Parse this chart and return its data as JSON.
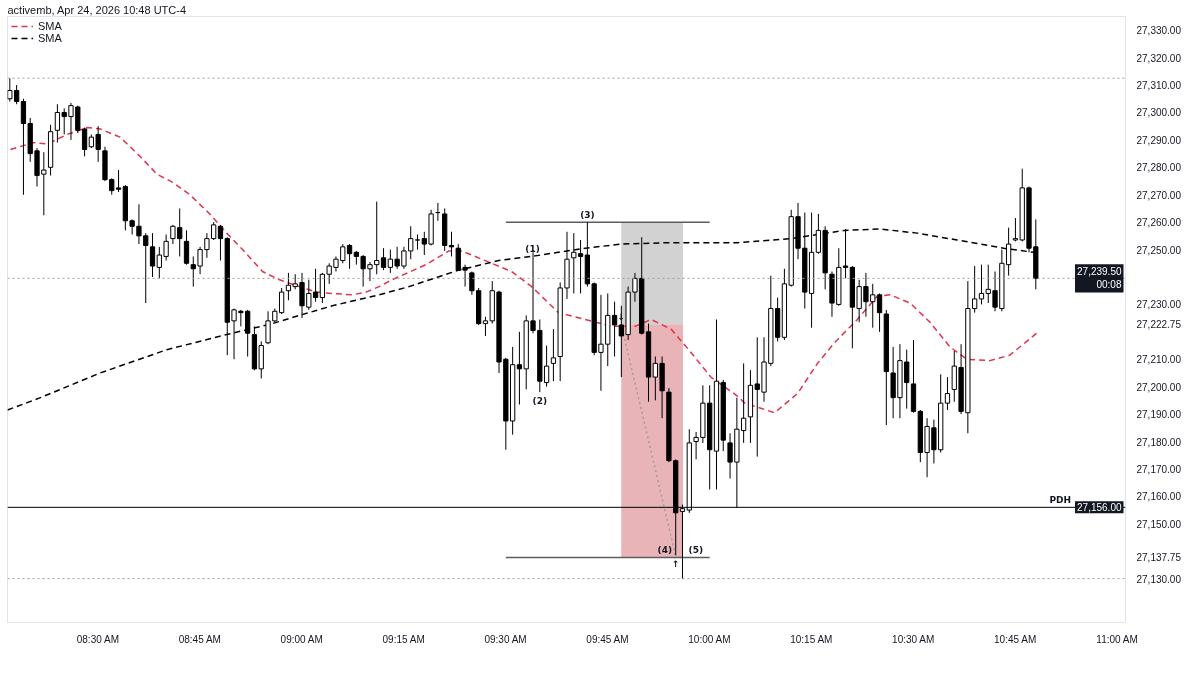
{
  "chart_data": {
    "type": "candlestick",
    "x": [
      8.2833,
      8.3,
      8.3167,
      8.3333,
      8.35,
      8.3667,
      8.3833,
      8.4,
      8.4167,
      8.4333,
      8.45,
      8.4667,
      8.4833,
      8.5,
      8.5167,
      8.5333,
      8.55,
      8.5667,
      8.5833,
      8.6,
      8.6167,
      8.6333,
      8.65,
      8.6667,
      8.6833,
      8.7,
      8.7167,
      8.7333,
      8.75,
      8.7667,
      8.7833,
      8.8,
      8.8167,
      8.8333,
      8.85,
      8.8667,
      8.8833,
      8.9,
      8.9167,
      8.9333,
      8.95,
      8.9667,
      8.9833,
      9.0,
      9.0167,
      9.0333,
      9.05,
      9.0667,
      9.0833,
      9.1,
      9.1167,
      9.1333,
      9.15,
      9.1667,
      9.1833,
      9.2,
      9.2167,
      9.2333,
      9.25,
      9.2667,
      9.2833,
      9.3,
      9.3167,
      9.3333,
      9.35,
      9.3667,
      9.3833,
      9.4,
      9.4167,
      9.4333,
      9.45,
      9.4667,
      9.4833,
      9.5,
      9.5167,
      9.5333,
      9.55,
      9.5667,
      9.5833,
      9.6,
      9.6167,
      9.6333,
      9.65,
      9.6667,
      9.6833,
      9.7,
      9.7167,
      9.7333,
      9.75,
      9.7667,
      9.7833,
      9.8,
      9.8167,
      9.8333,
      9.85,
      9.8667,
      9.8833,
      9.9,
      9.9167,
      9.9333,
      9.95,
      9.9667,
      9.9833,
      10.0,
      10.0167,
      10.0333,
      10.05,
      10.0667,
      10.0833,
      10.1,
      10.1167,
      10.1333,
      10.15,
      10.1667,
      10.1833,
      10.2,
      10.2167,
      10.2333,
      10.25,
      10.2667,
      10.2833,
      10.3,
      10.3167,
      10.3333,
      10.35,
      10.3667,
      10.3833,
      10.4,
      10.4167,
      10.4333,
      10.45,
      10.4667,
      10.4833,
      10.5,
      10.5167,
      10.5333,
      10.55,
      10.5667,
      10.5833,
      10.6,
      10.6167,
      10.6333,
      10.65,
      10.6667,
      10.6833,
      10.7,
      10.7167,
      10.7333,
      10.75,
      10.7667,
      10.7833,
      10.8
    ],
    "ohlc": [
      [
        27305,
        27312.5,
        27304,
        27308
      ],
      [
        27308,
        27310,
        27303,
        27304
      ],
      [
        27304,
        27305,
        27270,
        27296
      ],
      [
        27296,
        27298,
        27282,
        27285
      ],
      [
        27286,
        27287,
        27273,
        27277
      ],
      [
        27277.5,
        27285.5,
        27262.5,
        27279
      ],
      [
        27280,
        27295.5,
        27277,
        27293
      ],
      [
        27293.5,
        27303,
        27289,
        27300
      ],
      [
        27300,
        27301.5,
        27292,
        27298.5
      ],
      [
        27298.5,
        27303.5,
        27290,
        27302.5
      ],
      [
        27302,
        27302.5,
        27292.5,
        27293.5
      ],
      [
        27294,
        27294.5,
        27284,
        27286.5
      ],
      [
        27287.5,
        27292,
        27287,
        27291
      ],
      [
        27292,
        27295,
        27282,
        27286.5
      ],
      [
        27286,
        27287.5,
        27275,
        27275.5
      ],
      [
        27275.5,
        27276,
        27270,
        27271.5
      ],
      [
        27272.5,
        27279,
        27271,
        27272
      ],
      [
        27273,
        27273.5,
        27257,
        27260.5
      ],
      [
        27260.5,
        27261,
        27255.5,
        27258.5
      ],
      [
        27258.5,
        27266.5,
        27252,
        27255
      ],
      [
        27255,
        27256,
        27230.5,
        27251.5
      ],
      [
        27251,
        27256,
        27240,
        27244
      ],
      [
        27243.5,
        27251,
        27239.5,
        27248
      ],
      [
        27247.5,
        27255.5,
        27246,
        27253
      ],
      [
        27254,
        27259,
        27252,
        27258.5
      ],
      [
        27258,
        27265,
        27247.5,
        27254
      ],
      [
        27253,
        27257,
        27244.5,
        27245
      ],
      [
        27244.5,
        27247.5,
        27236.5,
        27243
      ],
      [
        27244,
        27251,
        27241,
        27250
      ],
      [
        27250,
        27256,
        27247,
        27254
      ],
      [
        27254,
        27260,
        27253.5,
        27259
      ],
      [
        27258.5,
        27259,
        27246,
        27254
      ],
      [
        27254,
        27254.5,
        27211.5,
        27223.5
      ],
      [
        27224,
        27228.5,
        27210,
        27228
      ],
      [
        27227.5,
        27228,
        27222,
        27227
      ],
      [
        27227.5,
        27228,
        27211,
        27219.5
      ],
      [
        27219,
        27222,
        27206,
        27206.5
      ],
      [
        27206.5,
        27216.5,
        27203,
        27215
      ],
      [
        27216,
        27227.5,
        27215.5,
        27224
      ],
      [
        27224,
        27228.5,
        27223.5,
        27227.5
      ],
      [
        27227,
        27236,
        27226.5,
        27234.5
      ],
      [
        27235,
        27241.5,
        27231.5,
        27237
      ],
      [
        27236.5,
        27241,
        27235.5,
        27237.5
      ],
      [
        27238,
        27241.5,
        27225,
        27229.5
      ],
      [
        27229,
        27239,
        27228,
        27234
      ],
      [
        27234.5,
        27243,
        27231,
        27232.5
      ],
      [
        27232.5,
        27241.5,
        27230.5,
        27241
      ],
      [
        27241,
        27245,
        27237.5,
        27244
      ],
      [
        27243.5,
        27247.5,
        27242,
        27246.5
      ],
      [
        27246,
        27252,
        27245,
        27251
      ],
      [
        27251.5,
        27252,
        27243,
        27248.5
      ],
      [
        27249,
        27249.5,
        27244.5,
        27247.5
      ],
      [
        27247.5,
        27248,
        27236.5,
        27243
      ],
      [
        27243,
        27245.5,
        27238.5,
        27244.5
      ],
      [
        27244.5,
        27267.5,
        27241,
        27246
      ],
      [
        27247,
        27250.5,
        27242.5,
        27243.5
      ],
      [
        27243.5,
        27250,
        27241.5,
        27246.5
      ],
      [
        27246.5,
        27251,
        27243,
        27244
      ],
      [
        27244,
        27251,
        27243,
        27249.5
      ],
      [
        27249.5,
        27258.5,
        27246.5,
        27254
      ],
      [
        27253.5,
        27255.5,
        27250,
        27253.5
      ],
      [
        27254,
        27256.5,
        27248,
        27252
      ],
      [
        27252,
        27264.5,
        27251.5,
        27263
      ],
      [
        27263.5,
        27267,
        27260.5,
        27263.5
      ],
      [
        27263,
        27265,
        27249.5,
        27251.5
      ],
      [
        27251.5,
        27256.5,
        27247.5,
        27251
      ],
      [
        27250.5,
        27252,
        27242.5,
        27242.5
      ],
      [
        27243.5,
        27244.5,
        27236.5,
        27242.5
      ],
      [
        27241.5,
        27242,
        27233.5,
        27235
      ],
      [
        27235,
        27236,
        27222.5,
        27223
      ],
      [
        27223,
        27225.5,
        27218.5,
        27224
      ],
      [
        27224,
        27238.5,
        27223,
        27235
      ],
      [
        27234.5,
        27235,
        27205,
        27209
      ],
      [
        27210,
        27210.5,
        27177,
        27187.5
      ],
      [
        27187.5,
        27214.5,
        27182.5,
        27208
      ],
      [
        27208,
        27220,
        27193.5,
        27206.5
      ],
      [
        27206.5,
        27226,
        27199,
        27224
      ],
      [
        27224,
        27249,
        27219.5,
        27220.5
      ],
      [
        27220.5,
        27224.5,
        27198,
        27202
      ],
      [
        27201.5,
        27215,
        27200,
        27207.5
      ],
      [
        27208.5,
        27221,
        27202,
        27210.5
      ],
      [
        27211,
        27238,
        27202,
        27236
      ],
      [
        27236,
        27256.5,
        27232,
        27246.5
      ],
      [
        27247,
        27256,
        27234,
        27249
      ],
      [
        27248.5,
        27253.5,
        27234,
        27247.5
      ],
      [
        27248,
        27260,
        27236.5,
        27237.5
      ],
      [
        27237.5,
        27238,
        27211.5,
        27212.5
      ],
      [
        27212.5,
        27233.5,
        27198.5,
        27215.5
      ],
      [
        27215.5,
        27234,
        27207.5,
        27226
      ],
      [
        27226,
        27231,
        27211,
        27222.5
      ],
      [
        27222.5,
        27229.5,
        27203.5,
        27218.5
      ],
      [
        27219,
        27236.5,
        27217,
        27234.5
      ],
      [
        27234.5,
        27241.5,
        27231,
        27239.5
      ],
      [
        27239.5,
        27254.5,
        27219,
        27219.5
      ],
      [
        27220,
        27223,
        27194.5,
        27203.5
      ],
      [
        27203.5,
        27211,
        27195,
        27208.5
      ],
      [
        27208.5,
        27211,
        27188.5,
        27198.5
      ],
      [
        27198,
        27199.5,
        27172.5,
        27173
      ],
      [
        27173,
        27173.5,
        27138.5,
        27154
      ],
      [
        27154.5,
        27157,
        27130,
        27155.5
      ],
      [
        27155,
        27184.5,
        27154,
        27179.5
      ],
      [
        27180,
        27183.5,
        27173.5,
        27181.5
      ],
      [
        27181.5,
        27200.5,
        27179.5,
        27194
      ],
      [
        27194,
        27200.5,
        27162.5,
        27177
      ],
      [
        27176.5,
        27224.5,
        27162.5,
        27202
      ],
      [
        27201.5,
        27202.5,
        27176.5,
        27180.5
      ],
      [
        27179.5,
        27183,
        27166.5,
        27172.5
      ],
      [
        27172.5,
        27196,
        27156,
        27184.5
      ],
      [
        27184,
        27208.5,
        27179.5,
        27188.5
      ],
      [
        27189,
        27206,
        27179.5,
        27200.5
      ],
      [
        27201,
        27218,
        27174.5,
        27199
      ],
      [
        27198,
        27218,
        27194.5,
        27209
      ],
      [
        27208.5,
        27240.5,
        27207.5,
        27228.5
      ],
      [
        27228.5,
        27232.5,
        27216.5,
        27218
      ],
      [
        27218,
        27243,
        27217,
        27237.5
      ],
      [
        27237,
        27264.5,
        27236.5,
        27262
      ],
      [
        27262,
        27267,
        27246.5,
        27250.5
      ],
      [
        27250.5,
        27263.5,
        27228.5,
        27234.5
      ],
      [
        27234,
        27263.5,
        27221.5,
        27249
      ],
      [
        27249,
        27263,
        27248.5,
        27257
      ],
      [
        27257,
        27258.5,
        27235.5,
        27241.5
      ],
      [
        27241,
        27242,
        27225.5,
        27230.5
      ],
      [
        27230,
        27250.5,
        27229.5,
        27243.5
      ],
      [
        27244,
        27257.5,
        27239.5,
        27243.5
      ],
      [
        27243.5,
        27244,
        27214,
        27229
      ],
      [
        27228.5,
        27239,
        27223.5,
        27236.5
      ],
      [
        27236.5,
        27241.5,
        27225.5,
        27231
      ],
      [
        27231,
        27237.5,
        27221.5,
        27233.5
      ],
      [
        27233.5,
        27234,
        27220,
        27227
      ],
      [
        27226.5,
        27228,
        27186,
        27205.5
      ],
      [
        27205,
        27214.5,
        27188.5,
        27196
      ],
      [
        27196,
        27215.5,
        27188.5,
        27209.5
      ],
      [
        27209,
        27213.5,
        27192,
        27201.5
      ],
      [
        27201,
        27217,
        27190.5,
        27191
      ],
      [
        27191,
        27191.5,
        27172.5,
        27176
      ],
      [
        27176,
        27188.5,
        27167,
        27185.5
      ],
      [
        27185,
        27188,
        27172,
        27177
      ],
      [
        27177,
        27204.5,
        27176,
        27194
      ],
      [
        27194,
        27203.5,
        27191.5,
        27197.5
      ],
      [
        27199,
        27213,
        27194.5,
        27207.5
      ],
      [
        27207,
        27215.5,
        27190,
        27191
      ],
      [
        27190.5,
        27238.5,
        27183,
        27228.5
      ],
      [
        27228.5,
        27244,
        27227,
        27232
      ],
      [
        27232,
        27244.5,
        27230,
        27234
      ],
      [
        27234,
        27244.5,
        27230.5,
        27235.5
      ],
      [
        27235,
        27242,
        27227.5,
        27229
      ],
      [
        27228.5,
        27250,
        27227.5,
        27245
      ],
      [
        27244.5,
        27258,
        27240.5,
        27252
      ],
      [
        27253.5,
        27261.5,
        27253,
        27254
      ],
      [
        27253.5,
        27279.5,
        27253,
        27272.5
      ],
      [
        27272.5,
        27273,
        27249,
        27250.5
      ],
      [
        27251,
        27261,
        27235.5,
        27239.5
      ]
    ],
    "colors": [
      "#ffffff",
      "#000000",
      "#000000",
      "#000000",
      "#000000",
      "#ffffff",
      "#ffffff",
      "#ffffff",
      "#000000",
      "#ffffff",
      "#000000",
      "#000000",
      "#ffffff",
      "#000000",
      "#000000",
      "#000000",
      "#000000",
      "#000000",
      "#000000",
      "#000000",
      "#000000",
      "#000000",
      "#ffffff",
      "#ffffff",
      "#ffffff",
      "#000000",
      "#000000",
      "#000000",
      "#ffffff",
      "#ffffff",
      "#ffffff",
      "#000000",
      "#000000",
      "#ffffff",
      "#000000",
      "#000000",
      "#000000",
      "#ffffff",
      "#ffffff",
      "#ffffff",
      "#ffffff",
      "#ffffff",
      "#ffffff",
      "#000000",
      "#ffffff",
      "#000000",
      "#ffffff",
      "#ffffff",
      "#ffffff",
      "#ffffff",
      "#000000",
      "#000000",
      "#000000",
      "#ffffff",
      "#ffffff",
      "#000000",
      "#ffffff",
      "#000000",
      "#ffffff",
      "#ffffff",
      "#000000",
      "#000000",
      "#ffffff",
      "#000000",
      "#000000",
      "#000000",
      "#000000",
      "#000000",
      "#000000",
      "#000000",
      "#ffffff",
      "#ffffff",
      "#000000",
      "#000000",
      "#ffffff",
      "#000000",
      "#ffffff",
      "#000000",
      "#000000",
      "#ffffff",
      "#ffffff",
      "#ffffff",
      "#ffffff",
      "#ffffff",
      "#000000",
      "#000000",
      "#000000",
      "#ffffff",
      "#ffffff",
      "#000000",
      "#000000",
      "#ffffff",
      "#ffffff",
      "#000000",
      "#000000",
      "#ffffff",
      "#000000",
      "#000000",
      "#000000",
      "#ffffff",
      "#ffffff",
      "#ffffff",
      "#ffffff",
      "#000000",
      "#ffffff",
      "#000000",
      "#000000",
      "#ffffff",
      "#ffffff",
      "#ffffff",
      "#000000",
      "#ffffff",
      "#ffffff",
      "#000000",
      "#ffffff",
      "#ffffff",
      "#000000",
      "#000000",
      "#ffffff",
      "#ffffff",
      "#000000",
      "#000000",
      "#ffffff",
      "#000000",
      "#000000",
      "#ffffff",
      "#000000",
      "#ffffff",
      "#000000",
      "#000000",
      "#000000",
      "#ffffff",
      "#000000",
      "#000000",
      "#000000",
      "#ffffff",
      "#000000",
      "#ffffff",
      "#ffffff",
      "#ffffff",
      "#000000",
      "#ffffff",
      "#ffffff",
      "#ffffff",
      "#ffffff",
      "#000000",
      "#ffffff",
      "#ffffff",
      "#ffffff",
      "#ffffff",
      "#000000",
      "#000000"
    ],
    "series": [
      {
        "type": "line",
        "name": "SMA",
        "color": "#e0344c",
        "line_style": "dashed",
        "x": [
          8.2849,
          8.3411,
          8.3754,
          8.4242,
          8.4731,
          8.5049,
          8.5538,
          8.6026,
          8.6442,
          8.6833,
          8.7248,
          8.7737,
          8.8152,
          8.8543,
          8.9032,
          8.9448,
          8.9936,
          9.0352,
          9.0743,
          9.1232,
          9.1574,
          9.1891,
          9.2209,
          9.304,
          9.3602,
          9.392,
          9.4653,
          9.5142,
          9.5631,
          9.629,
          9.695,
          9.7586,
          9.8172,
          9.8563,
          9.9052,
          9.9541,
          10.0029,
          10.0689,
          10.086,
          10.1593,
          10.2155,
          10.2644,
          10.3059,
          10.3622,
          10.411,
          10.4428,
          10.4917,
          10.5405,
          10.5894,
          10.631,
          10.6872,
          10.7361,
          10.7776,
          10.802
        ],
        "values": [
          27286.5,
          27289,
          27288.5,
          27292,
          27294.5,
          27294,
          27291,
          27284,
          27277.5,
          27274.5,
          27270,
          27263,
          27256,
          27250,
          27242,
          27239,
          27236.5,
          27234.5,
          27234,
          27233.5,
          27234.5,
          27236.5,
          27239,
          27244.5,
          27249.5,
          27249.5,
          27245,
          27242,
          27236.5,
          27227,
          27224.5,
          27222,
          27222,
          27224.5,
          27221,
          27212.5,
          27203.5,
          27196.5,
          27194,
          27190.5,
          27197.5,
          27208.5,
          27216,
          27224.5,
          27233,
          27233.5,
          27230.5,
          27223.5,
          27214.5,
          27210,
          27209.5,
          27211.5,
          27216.5,
          27219.5
        ]
      },
      {
        "type": "line",
        "name": "SMA",
        "color": "#000000",
        "line_style": "dashed",
        "x": [
          8.2776,
          8.3583,
          8.5049,
          8.6686,
          8.8152,
          8.9277,
          8.9936,
          9.0743,
          9.1891,
          9.2625,
          9.3847,
          9.4824,
          9.5631,
          9.695,
          9.783,
          9.8978,
          10.0689,
          10.1984,
          10.3304,
          10.4184,
          10.5088,
          10.6065,
          10.7214,
          10.7947
        ],
        "values": [
          27191.5,
          27196,
          27205,
          27213.5,
          27219,
          27223,
          27226,
          27229.5,
          27233.5,
          27236.5,
          27242.5,
          27246,
          27247.5,
          27250.5,
          27252,
          27252.5,
          27252.5,
          27254,
          27257,
          27257.5,
          27256,
          27253.5,
          27250.5,
          27249
        ]
      },
      {
        "type": "bar",
        "color": "#d2d2d2",
        "x": [
          9.8588
        ],
        "base": [
          27222.75
        ],
        "values": [
          37.25
        ]
      },
      {
        "type": "bar",
        "color": "#e8b4b8",
        "x": [
          9.8588
        ],
        "base": [
          27137.75
        ],
        "values": [
          85
        ]
      },
      {
        "type": "line",
        "color": "#5d5d5d",
        "x": [
          9.5,
          10.0
        ],
        "values": [
          27260,
          27260
        ]
      },
      {
        "type": "line",
        "color": "#5d5d5d",
        "x": [
          9.5,
          10.0
        ],
        "values": [
          27137.75,
          27137.75
        ]
      },
      {
        "type": "line",
        "color": "#9e9e9e",
        "line_style": "dotted",
        "x": [
          9.783,
          9.917
        ],
        "values": [
          27222.75,
          27138
        ]
      }
    ],
    "xlim": [
      8.2776,
      11.02
    ],
    "xticks": [
      {
        "value": 8.5,
        "label": "08:30 AM"
      },
      {
        "value": 8.75,
        "label": "08:45 AM"
      },
      {
        "value": 9,
        "label": "09:00 AM"
      },
      {
        "value": 9.25,
        "label": "09:15 AM"
      },
      {
        "value": 9.5,
        "label": "09:30 AM"
      },
      {
        "value": 9.75,
        "label": "09:45 AM"
      },
      {
        "value": 10,
        "label": "10:00 AM"
      },
      {
        "value": 10.25,
        "label": "10:15 AM"
      },
      {
        "value": 10.5,
        "label": "10:30 AM"
      },
      {
        "value": 10.75,
        "label": "10:45 AM"
      },
      {
        "value": 11,
        "label": "11:00 AM"
      }
    ],
    "ylim": [
      27114,
      27335
    ],
    "yticks": [
      {
        "value": 27130,
        "label": "27,130.00"
      },
      {
        "value": 27137.75,
        "label": "27,137.75"
      },
      {
        "value": 27150,
        "label": "27,150.00"
      },
      {
        "value": 27160,
        "label": "27,160.00"
      },
      {
        "value": 27170,
        "label": "27,170.00"
      },
      {
        "value": 27180,
        "label": "27,180.00"
      },
      {
        "value": 27190,
        "label": "27,190.00"
      },
      {
        "value": 27200,
        "label": "27,200.00"
      },
      {
        "value": 27210,
        "label": "27,210.00"
      },
      {
        "value": 27222.75,
        "label": "27,222.75"
      },
      {
        "value": 27230,
        "label": "27,230.00"
      },
      {
        "value": 27250,
        "label": "27,250.00"
      },
      {
        "value": 27260,
        "label": "27,260.00"
      },
      {
        "value": 27270,
        "label": "27,270.00"
      },
      {
        "value": 27280,
        "label": "27,280.00"
      },
      {
        "value": 27290,
        "label": "27,290.00"
      },
      {
        "value": 27300,
        "label": "27,300.00"
      },
      {
        "value": 27310,
        "label": "27,310.00"
      },
      {
        "value": 27320,
        "label": "27,320.00"
      },
      {
        "value": 27330,
        "label": "27,330.00"
      }
    ],
    "ref_lines": [
      {
        "axis": "y",
        "value": 27312.5,
        "color": "#9e9e9e",
        "line_style": "dotted"
      },
      {
        "axis": "y",
        "value": 27239.5,
        "label": "27,239.50\n00:08",
        "color": "#9e9e9e",
        "line_style": "dotted"
      },
      {
        "axis": "y",
        "value": 27156,
        "label": "27,156.00",
        "color": "#000000",
        "line_style": "solid"
      },
      {
        "axis": "y",
        "value": 27130,
        "color": "#9e9e9e",
        "line_style": "dotted"
      }
    ],
    "annotations": [
      "activemb, Apr 24, 2026 10:48 UTC-4",
      {
        "text": "(1)",
        "x": 9.5655,
        "y": 27247.5
      },
      {
        "text": "(2)",
        "x": 9.5833,
        "y": 27198
      },
      {
        "text": "(3)",
        "x": 9.7,
        "y": 27260
      },
      {
        "text": "(4)",
        "x": 9.89,
        "y": 27137.75
      },
      {
        "text": "(5)",
        "x": 9.966,
        "y": 27137.75
      },
      {
        "text": "↓",
        "x": 9.783,
        "y": 27222.75
      },
      {
        "text": "↑",
        "x": 9.9167,
        "y": 27138.5
      },
      {
        "text": "PDH",
        "x": 10.86,
        "y": 27156
      }
    ],
    "legend": "top left"
  }
}
